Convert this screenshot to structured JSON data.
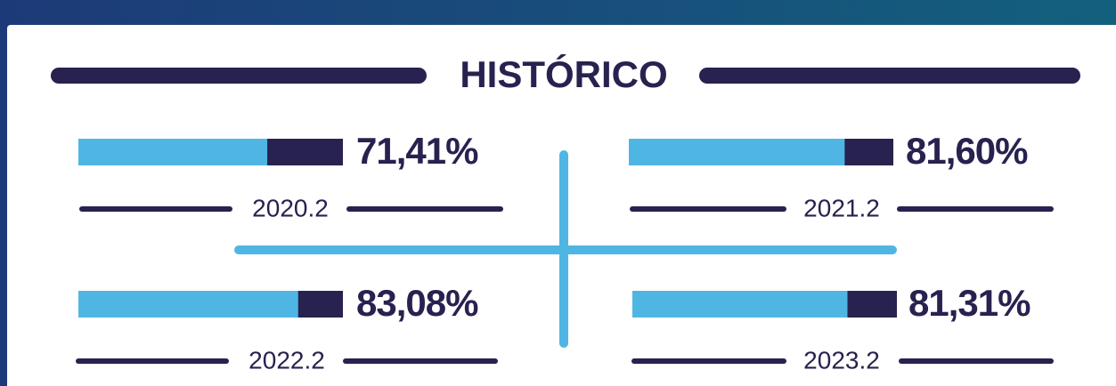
{
  "title": "HISTÓRICO",
  "items": [
    {
      "period": "2020.2",
      "value": 71.41,
      "value_label": "71,41%"
    },
    {
      "period": "2021.2",
      "value": 81.6,
      "value_label": "81,60%"
    },
    {
      "period": "2022.2",
      "value": 83.08,
      "value_label": "83,08%"
    },
    {
      "period": "2023.2",
      "value": 81.31,
      "value_label": "81,31%"
    }
  ]
}
